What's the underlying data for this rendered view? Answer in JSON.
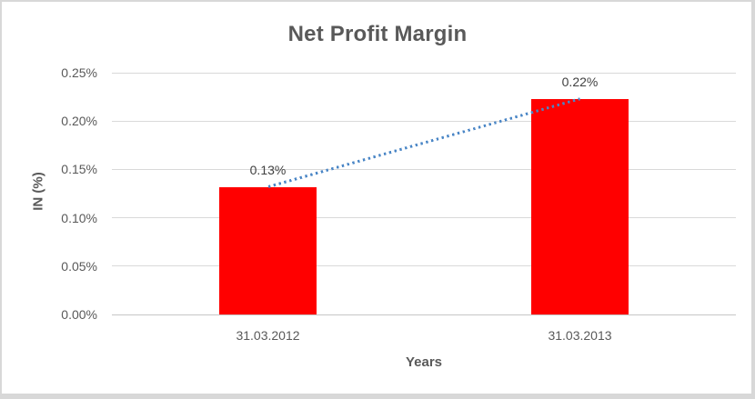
{
  "chart_data": {
    "type": "bar",
    "title": "Net Profit Margin",
    "xlabel": "Years",
    "ylabel": "IN (%)",
    "categories": [
      "31.03.2012",
      "31.03.2013"
    ],
    "values": [
      0.132,
      0.223
    ],
    "data_labels": [
      "0.13%",
      "0.22%"
    ],
    "ylim": [
      0,
      0.25
    ],
    "ytick_step": 0.05,
    "yticks": [
      "0.00%",
      "0.05%",
      "0.10%",
      "0.15%",
      "0.20%",
      "0.25%"
    ],
    "grid": true,
    "legend": "none",
    "bar_color": "#ff0000",
    "gridline_color": "#d9d9d9",
    "trendline": {
      "type": "linear",
      "style": "dotted",
      "color": "#4a86c6"
    },
    "text_color": "#595959",
    "data_label_color": "#404040"
  }
}
